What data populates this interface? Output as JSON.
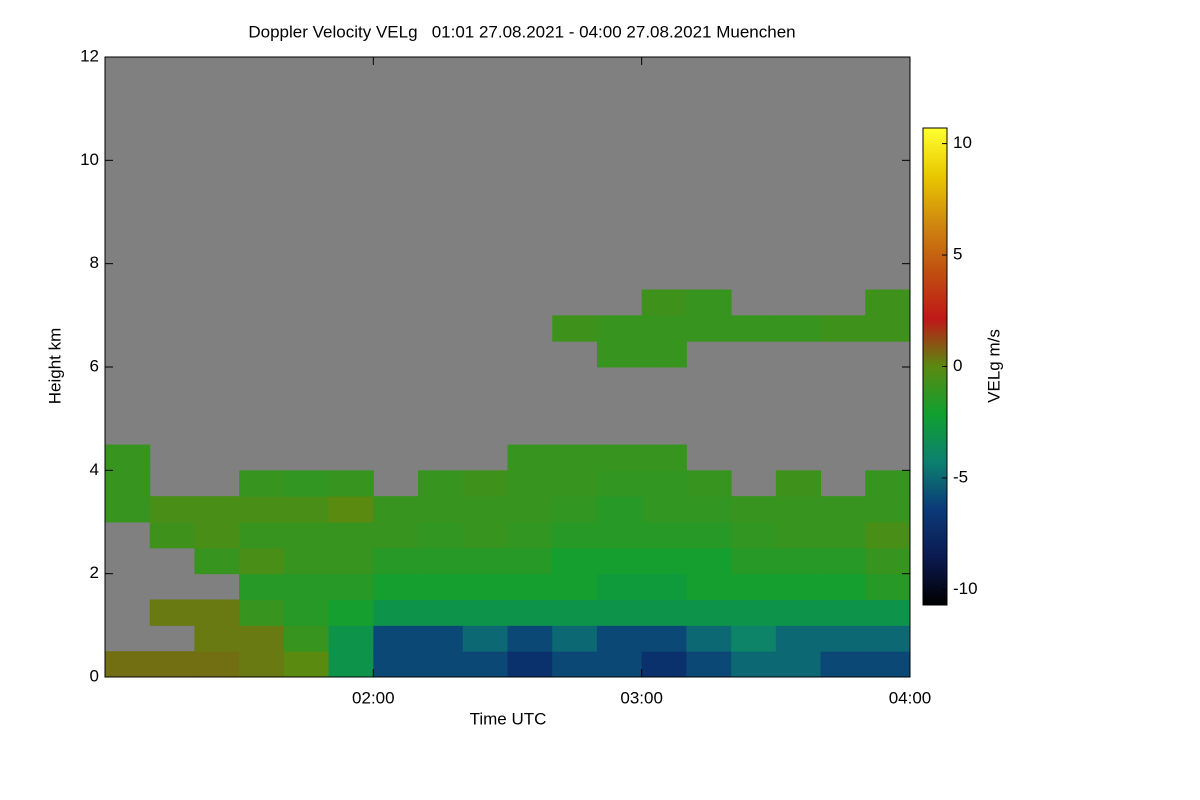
{
  "chart_data": {
    "type": "heatmap",
    "title": "Doppler Velocity VELg   01:01 27.08.2021 - 04:00 27.08.2021 Muenchen",
    "x_label": "Time UTC",
    "y_label": "Height km",
    "colorbar_label": "VELg m/s",
    "xlim": [
      1,
      4
    ],
    "ylim": [
      0,
      12
    ],
    "zlim": [
      -10.7,
      10.7
    ],
    "xticks": [
      {
        "value": 2,
        "label": "02:00"
      },
      {
        "value": 3,
        "label": "03:00"
      },
      {
        "value": 4,
        "label": "04:00"
      }
    ],
    "yticks": [
      0,
      2,
      4,
      6,
      8,
      10,
      12
    ],
    "zticks": [
      -10,
      -5,
      0,
      5,
      10
    ],
    "background": "#808080",
    "colorscale": [
      "#000000",
      "#0b1a50",
      "#0b3a78",
      "#0c8070",
      "#10a030",
      "#5a8a10",
      "#c01818",
      "#c05010",
      "#d08810",
      "#e8c800",
      "#ffff30"
    ],
    "x_bins": [
      1,
      1.1667,
      1.3333,
      1.5,
      1.6667,
      1.8333,
      2,
      2.1667,
      2.3333,
      2.5,
      2.6667,
      2.8333,
      3,
      3.1667,
      3.3333,
      3.5,
      3.6667,
      3.8333,
      4
    ],
    "y_bins": [
      0,
      0.5,
      1,
      1.5,
      2,
      2.5,
      3,
      3.5,
      4,
      4.5,
      5,
      5.5,
      6,
      6.5,
      7,
      7.5
    ],
    "z": [
      [
        0.5,
        null,
        null,
        null,
        null,
        null,
        -1,
        -1,
        -1,
        null,
        null,
        null,
        null,
        null,
        null
      ],
      [
        0.5,
        null,
        0.3,
        null,
        null,
        -0.8,
        -0.5,
        null,
        null,
        null,
        null,
        null,
        null,
        null,
        null
      ],
      [
        0.5,
        0.3,
        0.3,
        null,
        -1,
        -0.5,
        -0.5,
        null,
        null,
        null,
        null,
        null,
        null,
        null,
        null
      ],
      [
        0.3,
        0.3,
        -1,
        -1.5,
        -0.5,
        -1,
        -0.5,
        -1,
        null,
        null,
        null,
        null,
        null,
        null,
        null
      ],
      [
        0,
        -1,
        -1.5,
        -1.5,
        -1,
        -1,
        -0.5,
        -1.2,
        null,
        null,
        null,
        null,
        null,
        null,
        null
      ],
      [
        -3,
        -3,
        -2,
        -1.5,
        -1,
        -1,
        0,
        -1,
        null,
        null,
        null,
        null,
        null,
        null,
        null
      ],
      [
        -6,
        -6,
        -3,
        -2,
        -1.5,
        -1,
        -1,
        null,
        null,
        null,
        null,
        null,
        null,
        null,
        null
      ],
      [
        -6,
        -6,
        -3,
        -2,
        -1.5,
        -1.2,
        -1,
        -1,
        null,
        null,
        null,
        null,
        null,
        null,
        null
      ],
      [
        -6,
        -5,
        -3,
        -2,
        -1.5,
        -1,
        -1,
        -0.8,
        null,
        null,
        null,
        null,
        null,
        null,
        null
      ],
      [
        -7,
        -6,
        -3,
        -2,
        -1.5,
        -1.2,
        -1,
        -1,
        -1,
        null,
        null,
        null,
        null,
        null,
        null
      ],
      [
        -6,
        -5,
        -3,
        -2,
        -2,
        -1.5,
        -1.2,
        -1,
        -1,
        null,
        null,
        null,
        null,
        -0.8,
        null
      ],
      [
        -6,
        -6,
        -3,
        -2.5,
        -2,
        -1.5,
        -1.5,
        -1.2,
        -1,
        null,
        null,
        null,
        -1,
        -1,
        null
      ],
      [
        -7,
        -6,
        -3,
        -2.5,
        -2,
        -1.5,
        -1.2,
        -1.2,
        -1,
        null,
        null,
        null,
        -1,
        -1,
        -0.8
      ],
      [
        -6,
        -5,
        -3,
        -2,
        -2,
        -1.5,
        -1.2,
        -1,
        null,
        null,
        null,
        null,
        null,
        -1,
        -1
      ],
      [
        -5,
        -4,
        -3,
        -2,
        -1.5,
        -1.2,
        -1,
        null,
        null,
        null,
        null,
        null,
        null,
        -1,
        null
      ],
      [
        -5,
        -5,
        -3,
        -2,
        -1.5,
        -1,
        -1,
        -0.8,
        null,
        null,
        null,
        null,
        null,
        -1,
        null
      ],
      [
        -6,
        -5,
        -3,
        -2,
        -1.5,
        -1,
        -1,
        null,
        null,
        null,
        null,
        null,
        null,
        -0.8,
        null
      ],
      [
        -6,
        -5,
        -3,
        -1.5,
        -1,
        -0.5,
        -1,
        -1,
        null,
        null,
        null,
        null,
        null,
        -0.8,
        -0.8
      ]
    ]
  }
}
